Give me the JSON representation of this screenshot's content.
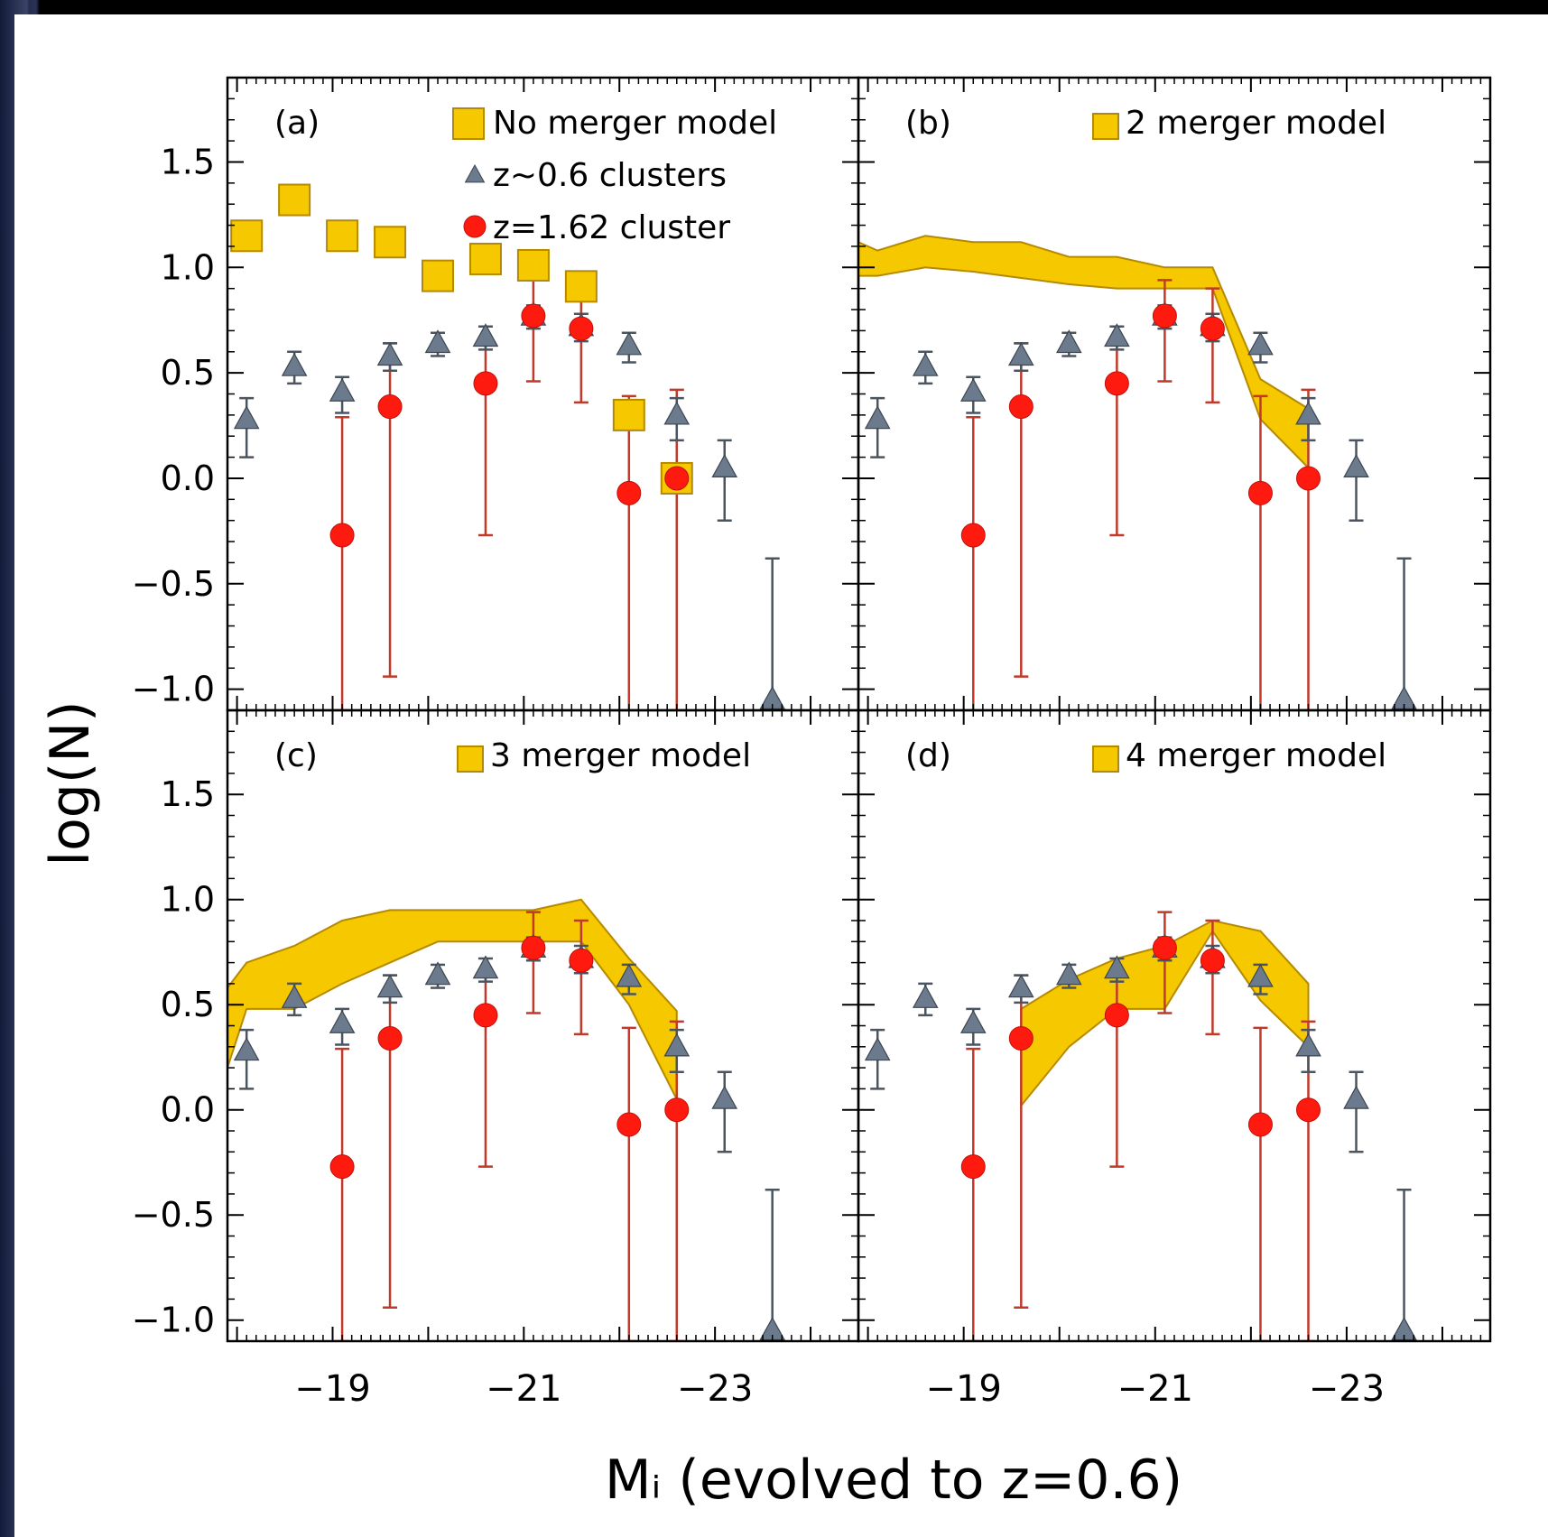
{
  "chart_data": {
    "type": "scatter",
    "xlabel": "Mᵢ (evolved to z=0.6)",
    "ylabel": "log(N)",
    "xlim": [
      -17.9,
      -24.5
    ],
    "ylim": [
      -1.1,
      1.9
    ],
    "xticks": [
      "−19",
      "−21",
      "−23"
    ],
    "xtick_values": [
      -19,
      -21,
      -23
    ],
    "yticks": [
      "1.5",
      "1.0",
      "0.5",
      "0.0",
      "−0.5",
      "−1.0"
    ],
    "ytick_values": [
      1.5,
      1.0,
      0.5,
      0.0,
      -0.5,
      -1.0
    ],
    "colors": {
      "model": "#f6c800",
      "model_edge": "#b58a00",
      "cluster_162": "#ff1a10",
      "cluster_162_err": "#c0392b",
      "cluster_06": "#6b7a8c",
      "cluster_06_err": "#4a5560"
    },
    "series_z06": {
      "name": "z~0.6 clusters",
      "x": [
        -18.1,
        -18.6,
        -19.1,
        -19.6,
        -20.1,
        -20.6,
        -21.1,
        -21.6,
        -22.1,
        -22.6,
        -23.1,
        -23.6
      ],
      "y": [
        0.28,
        0.53,
        0.41,
        0.58,
        0.64,
        0.67,
        0.77,
        0.72,
        0.63,
        0.3,
        0.05,
        -1.05
      ],
      "err_low": [
        0.18,
        0.08,
        0.1,
        0.07,
        0.06,
        0.06,
        0.06,
        0.07,
        0.08,
        0.12,
        0.25,
        0.0
      ],
      "err_high": [
        0.1,
        0.07,
        0.07,
        0.06,
        0.05,
        0.05,
        0.05,
        0.06,
        0.06,
        0.08,
        0.13,
        0.67
      ]
    },
    "series_z162": {
      "name": "z=1.62 cluster",
      "x": [
        -19.1,
        -19.6,
        -20.6,
        -21.1,
        -21.6,
        -22.1,
        -22.6
      ],
      "y": [
        -0.27,
        0.34,
        0.45,
        0.77,
        0.71,
        -0.07,
        0.0
      ],
      "err_low": [
        0.83,
        1.28,
        0.72,
        0.31,
        0.35,
        1.03,
        1.1
      ],
      "err_high": [
        0.56,
        0.3,
        0.19,
        0.17,
        0.19,
        0.46,
        0.42
      ]
    },
    "panels": [
      {
        "label": "(a)",
        "legend": [
          "No merger model",
          "z~0.6 clusters",
          "z=1.62 cluster"
        ],
        "model_type": "points",
        "model_x": [
          -18.1,
          -18.6,
          -19.1,
          -19.6,
          -20.1,
          -20.6,
          -21.1,
          -21.6,
          -22.1,
          -22.6
        ],
        "model_y": [
          1.15,
          1.32,
          1.15,
          1.12,
          0.96,
          1.04,
          1.01,
          0.91,
          0.3,
          0.0
        ]
      },
      {
        "label": "(b)",
        "legend": [
          "2 merger model"
        ],
        "model_type": "band",
        "band_x": [
          -17.9,
          -18.1,
          -18.6,
          -19.1,
          -19.6,
          -20.1,
          -20.6,
          -21.1,
          -21.6,
          -22.1,
          -22.6
        ],
        "band_upper": [
          1.12,
          1.08,
          1.15,
          1.12,
          1.12,
          1.05,
          1.05,
          1.0,
          1.0,
          0.47,
          0.33
        ],
        "band_lower": [
          0.96,
          0.96,
          1.0,
          0.98,
          0.95,
          0.92,
          0.9,
          0.9,
          0.9,
          0.28,
          0.05
        ]
      },
      {
        "label": "(c)",
        "legend": [
          "3 merger model"
        ],
        "model_type": "band",
        "band_x": [
          -17.9,
          -18.1,
          -18.6,
          -19.1,
          -19.6,
          -20.1,
          -20.6,
          -21.1,
          -21.6,
          -22.1,
          -22.6
        ],
        "band_upper": [
          0.58,
          0.7,
          0.78,
          0.9,
          0.95,
          0.95,
          0.95,
          0.95,
          1.0,
          0.72,
          0.47
        ],
        "band_lower": [
          0.2,
          0.48,
          0.48,
          0.6,
          0.7,
          0.8,
          0.8,
          0.8,
          0.8,
          0.5,
          0.05
        ]
      },
      {
        "label": "(d)",
        "legend": [
          "4 merger model"
        ],
        "model_type": "band",
        "band_x": [
          -19.6,
          -20.1,
          -20.6,
          -21.1,
          -21.6,
          -22.1,
          -22.6
        ],
        "band_upper": [
          0.48,
          0.62,
          0.72,
          0.78,
          0.9,
          0.85,
          0.6
        ],
        "band_lower": [
          0.02,
          0.3,
          0.48,
          0.48,
          0.85,
          0.52,
          0.3
        ]
      }
    ]
  }
}
